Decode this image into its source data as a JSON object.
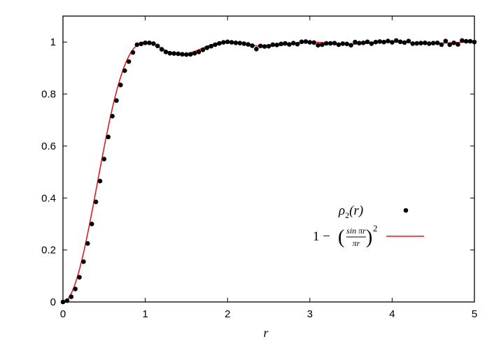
{
  "chart_data": {
    "type": "scatter",
    "title": "",
    "xlabel": "r",
    "ylabel": "",
    "xlim": [
      0,
      5
    ],
    "ylim": [
      0,
      1.1
    ],
    "grid": false,
    "legend_position": "right",
    "x_ticks": [
      0,
      1,
      2,
      3,
      4,
      5
    ],
    "y_ticks": [
      0,
      0.2,
      0.4,
      0.6,
      0.8,
      1
    ],
    "x_tick_labels": [
      "0",
      "1",
      "2",
      "3",
      "4",
      "5"
    ],
    "y_tick_labels": [
      "0",
      "0.2",
      "0.4",
      "0.6",
      "0.8",
      "1"
    ],
    "series": [
      {
        "name": "ρ2(r)",
        "kind": "points",
        "color": "#000000",
        "x": [
          0.0,
          0.05,
          0.1,
          0.15,
          0.2,
          0.25,
          0.3,
          0.35,
          0.4,
          0.45,
          0.5,
          0.55,
          0.6,
          0.65,
          0.7,
          0.75,
          0.8,
          0.85,
          0.9,
          0.95,
          1.0,
          1.05,
          1.1,
          1.15,
          1.2,
          1.25,
          1.3,
          1.35,
          1.4,
          1.45,
          1.5,
          1.55,
          1.6,
          1.65,
          1.7,
          1.75,
          1.8,
          1.85,
          1.9,
          1.95,
          2.0,
          2.05,
          2.1,
          2.15,
          2.2,
          2.25,
          2.3,
          2.35,
          2.4,
          2.45,
          2.5,
          2.55,
          2.6,
          2.65,
          2.7,
          2.75,
          2.8,
          2.85,
          2.9,
          2.95,
          3.0,
          3.05,
          3.1,
          3.15,
          3.2,
          3.25,
          3.3,
          3.35,
          3.4,
          3.45,
          3.5,
          3.55,
          3.6,
          3.65,
          3.7,
          3.75,
          3.8,
          3.85,
          3.9,
          3.95,
          4.0,
          4.05,
          4.1,
          4.15,
          4.2,
          4.25,
          4.3,
          4.35,
          4.4,
          4.45,
          4.5,
          4.55,
          4.6,
          4.65,
          4.7,
          4.75,
          4.8,
          4.85,
          4.9,
          4.95,
          5.0
        ],
        "y": [
          0.0,
          0.005,
          0.02,
          0.05,
          0.095,
          0.155,
          0.225,
          0.3,
          0.385,
          0.465,
          0.55,
          0.635,
          0.715,
          0.775,
          0.835,
          0.89,
          0.925,
          0.96,
          0.99,
          0.993,
          0.997,
          0.997,
          0.994,
          0.985,
          0.972,
          0.962,
          0.957,
          0.956,
          0.955,
          0.953,
          0.952,
          0.953,
          0.957,
          0.962,
          0.97,
          0.978,
          0.984,
          0.99,
          0.995,
          0.999,
          1.001,
          0.999,
          0.997,
          0.996,
          0.994,
          0.991,
          0.986,
          0.973,
          0.985,
          0.983,
          0.984,
          0.99,
          0.989,
          0.993,
          0.995,
          0.991,
          0.996,
          0.992,
          1.001,
          1.002,
          0.999,
          0.998,
          0.988,
          0.99,
          0.995,
          0.995,
          0.996,
          0.99,
          0.994,
          0.993,
          0.988,
          1.0,
          0.996,
          0.997,
          1.001,
          0.994,
          1.0,
          1.002,
          1.0,
          1.004,
          0.999,
          1.006,
          1.001,
          0.998,
          1.004,
          0.994,
          0.995,
          0.996,
          0.997,
          0.994,
          0.996,
          0.997,
          0.99,
          1.004,
          0.99,
          0.997,
          0.991,
          1.006,
          1.003,
          1.003,
          1.0
        ]
      },
      {
        "name": "1 − (sin πr / πr)²",
        "kind": "line",
        "color": "#e41a1c",
        "function": "1-(sin(pi r)/(pi r))^2",
        "x_range": [
          0,
          5
        ]
      }
    ],
    "legend": [
      {
        "label_main": "ρ",
        "label_sub": "2",
        "label_rest": "(r)"
      },
      {
        "label_prefix": "1 − ",
        "label_num": "sin πr",
        "label_den": "πr",
        "label_exp": "2"
      }
    ]
  },
  "colors": {
    "points": "#000000",
    "curve": "#e41a1c"
  }
}
